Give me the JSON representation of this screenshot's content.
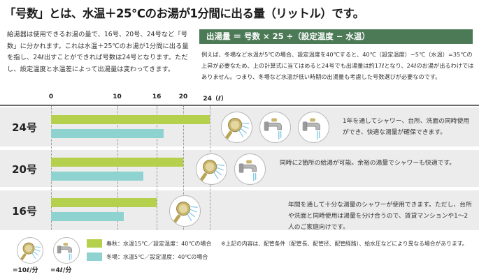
{
  "title": "「号数」とは、水温＋25℃のお湯が1分間に出る量（リットル）です。",
  "intro": "給湯器は使用できるお湯の量で、16号、20号、24号など「号数」に分かれます。これは水温＋25℃のお湯が1分間に出る量を指し、24ℓ出すことができれば号数は24号となります。ただし、設定温度と水温差によって出湯量は変わってきます。",
  "formula": "出湯量 ＝ 号数 × 25 ÷（設定温度 − 水温）",
  "example": "例えば、冬場など水温が5℃の場合、設定温度を40℃すると、40℃（設定温度）−5℃（水温）=35℃の上昇が必要なため、上の計算式に当てはめると24号でも出湯量は約17ℓとなり、24ℓのお湯が出るわけではありません。つまり、冬場など水温が低い時期の出湯量も考慮した号数選びが必要なのです。",
  "colors": {
    "spring_autumn": "#b5d04c",
    "winter": "#8fd3d0",
    "band": "#ececec",
    "formula_bg": "#4c7a56"
  },
  "icons": [
    "shower-icon",
    "faucet-icon"
  ],
  "chart_data": {
    "type": "bar",
    "orientation": "horizontal",
    "xlim": [
      0,
      24
    ],
    "ticks": [
      {
        "value": 0,
        "label": "0"
      },
      {
        "value": 10,
        "label": "10"
      },
      {
        "value": 16,
        "label": "16"
      },
      {
        "value": 20,
        "label": "20"
      },
      {
        "value": 24,
        "label": "24（ℓ）"
      }
    ],
    "categories": [
      "24号",
      "20号",
      "16号"
    ],
    "series": [
      {
        "name": "春秋：水温15℃／設定温度：40℃の場合",
        "color": "#b5d04c",
        "values": [
          24,
          20,
          16
        ]
      },
      {
        "name": "冬場：水温5℃／設定温度：40℃の場合",
        "color": "#8fd3d0",
        "values": [
          17,
          14,
          11
        ]
      }
    ],
    "rows": [
      {
        "label": "24号",
        "icons": [
          "shower-icon",
          "faucet-icon",
          "faucet-icon"
        ],
        "description": "1年を通してシャワー、台所、洗面の同時使用ができ、快適な湯量が確保できます。"
      },
      {
        "label": "20号",
        "icons": [
          "shower-icon",
          "faucet-icon"
        ],
        "description": "同時に2箇所の給湯が可能。余裕の湯量でシャワーも快適です。"
      },
      {
        "label": "16号",
        "icons": [
          "shower-icon"
        ],
        "description": "年間を通して十分な湯量のシャワーが使用できます。ただし、台所や洗面と同時使用は湯量を分け合うので、賃貸マンションや1〜2人のご家庭向けです。"
      }
    ]
  },
  "legend": {
    "shower_eq": "=10ℓ/分",
    "faucet_eq": "=4ℓ/分",
    "note": "※上記の内容は、配管条件（配管長、配管径、配管経路）、給水圧などにより異なる場合があります。"
  }
}
